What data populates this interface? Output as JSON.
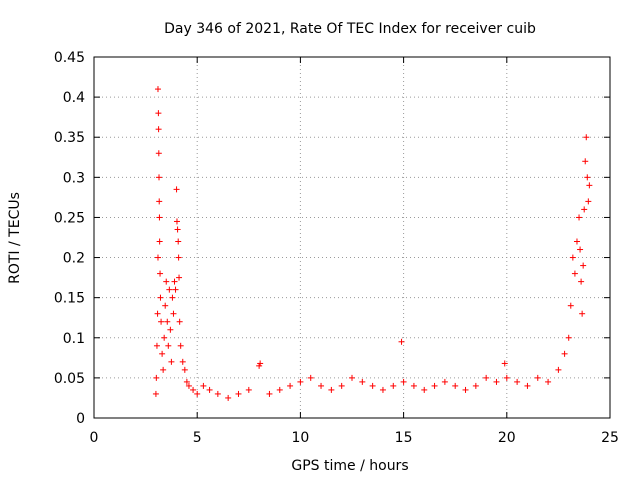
{
  "chart_data": {
    "type": "scatter",
    "title": "Day 346 of 2021, Rate Of TEC Index for receiver cuib",
    "xlabel": "GPS time / hours",
    "ylabel": "ROTI / TECUs",
    "xlim": [
      0,
      25
    ],
    "ylim": [
      0,
      0.45
    ],
    "xticks": [
      0,
      5,
      10,
      15,
      20,
      25
    ],
    "xtick_labels": [
      "0",
      "5",
      "10",
      "15",
      "20",
      "25"
    ],
    "yticks": [
      0,
      0.05,
      0.1,
      0.15,
      0.2,
      0.25,
      0.3,
      0.35,
      0.4,
      0.45
    ],
    "ytick_labels": [
      "0",
      "0.05",
      "0.1",
      "0.15",
      "0.2",
      "0.25",
      "0.3",
      "0.35",
      "0.4",
      "0.45"
    ],
    "grid": true,
    "marker": "plus",
    "color": "#ff0000",
    "series": [
      {
        "values": [
          [
            3.0,
            0.03
          ],
          [
            3.02,
            0.05
          ],
          [
            3.05,
            0.09
          ],
          [
            3.08,
            0.13
          ],
          [
            3.1,
            0.2
          ],
          [
            3.1,
            0.41
          ],
          [
            3.12,
            0.38
          ],
          [
            3.13,
            0.36
          ],
          [
            3.14,
            0.33
          ],
          [
            3.15,
            0.3
          ],
          [
            3.16,
            0.27
          ],
          [
            3.17,
            0.25
          ],
          [
            3.18,
            0.22
          ],
          [
            3.2,
            0.18
          ],
          [
            3.22,
            0.15
          ],
          [
            3.25,
            0.12
          ],
          [
            3.3,
            0.08
          ],
          [
            3.35,
            0.06
          ],
          [
            3.4,
            0.1
          ],
          [
            3.45,
            0.14
          ],
          [
            3.5,
            0.17
          ],
          [
            3.55,
            0.12
          ],
          [
            3.6,
            0.09
          ],
          [
            3.65,
            0.16
          ],
          [
            3.7,
            0.11
          ],
          [
            3.75,
            0.07
          ],
          [
            3.8,
            0.15
          ],
          [
            3.85,
            0.13
          ],
          [
            3.9,
            0.17
          ],
          [
            3.95,
            0.16
          ],
          [
            4.0,
            0.285
          ],
          [
            4.02,
            0.245
          ],
          [
            4.05,
            0.235
          ],
          [
            4.08,
            0.22
          ],
          [
            4.1,
            0.2
          ],
          [
            4.12,
            0.175
          ],
          [
            4.15,
            0.12
          ],
          [
            4.2,
            0.09
          ],
          [
            4.3,
            0.07
          ],
          [
            4.4,
            0.06
          ],
          [
            4.5,
            0.045
          ],
          [
            4.6,
            0.04
          ],
          [
            4.8,
            0.035
          ],
          [
            5.0,
            0.03
          ],
          [
            5.3,
            0.04
          ],
          [
            5.6,
            0.035
          ],
          [
            6.0,
            0.03
          ],
          [
            6.5,
            0.025
          ],
          [
            7.0,
            0.03
          ],
          [
            7.5,
            0.035
          ],
          [
            8.0,
            0.065
          ],
          [
            8.05,
            0.068
          ],
          [
            8.5,
            0.03
          ],
          [
            9.0,
            0.035
          ],
          [
            9.5,
            0.04
          ],
          [
            10.0,
            0.045
          ],
          [
            10.5,
            0.05
          ],
          [
            11.0,
            0.04
          ],
          [
            11.5,
            0.035
          ],
          [
            12.0,
            0.04
          ],
          [
            12.5,
            0.05
          ],
          [
            13.0,
            0.045
          ],
          [
            13.5,
            0.04
          ],
          [
            14.0,
            0.035
          ],
          [
            14.5,
            0.04
          ],
          [
            14.9,
            0.095
          ],
          [
            15.0,
            0.045
          ],
          [
            15.5,
            0.04
          ],
          [
            16.0,
            0.035
          ],
          [
            16.5,
            0.04
          ],
          [
            17.0,
            0.045
          ],
          [
            17.5,
            0.04
          ],
          [
            18.0,
            0.035
          ],
          [
            18.5,
            0.04
          ],
          [
            19.0,
            0.05
          ],
          [
            19.5,
            0.045
          ],
          [
            19.9,
            0.068
          ],
          [
            20.0,
            0.05
          ],
          [
            20.5,
            0.045
          ],
          [
            21.0,
            0.04
          ],
          [
            21.5,
            0.05
          ],
          [
            22.0,
            0.045
          ],
          [
            22.5,
            0.06
          ],
          [
            22.8,
            0.08
          ],
          [
            23.0,
            0.1
          ],
          [
            23.1,
            0.14
          ],
          [
            23.2,
            0.2
          ],
          [
            23.3,
            0.18
          ],
          [
            23.4,
            0.22
          ],
          [
            23.5,
            0.25
          ],
          [
            23.55,
            0.21
          ],
          [
            23.6,
            0.17
          ],
          [
            23.65,
            0.13
          ],
          [
            23.7,
            0.19
          ],
          [
            23.75,
            0.26
          ],
          [
            23.8,
            0.32
          ],
          [
            23.85,
            0.35
          ],
          [
            23.9,
            0.3
          ],
          [
            23.95,
            0.27
          ],
          [
            24.0,
            0.29
          ]
        ]
      }
    ]
  }
}
